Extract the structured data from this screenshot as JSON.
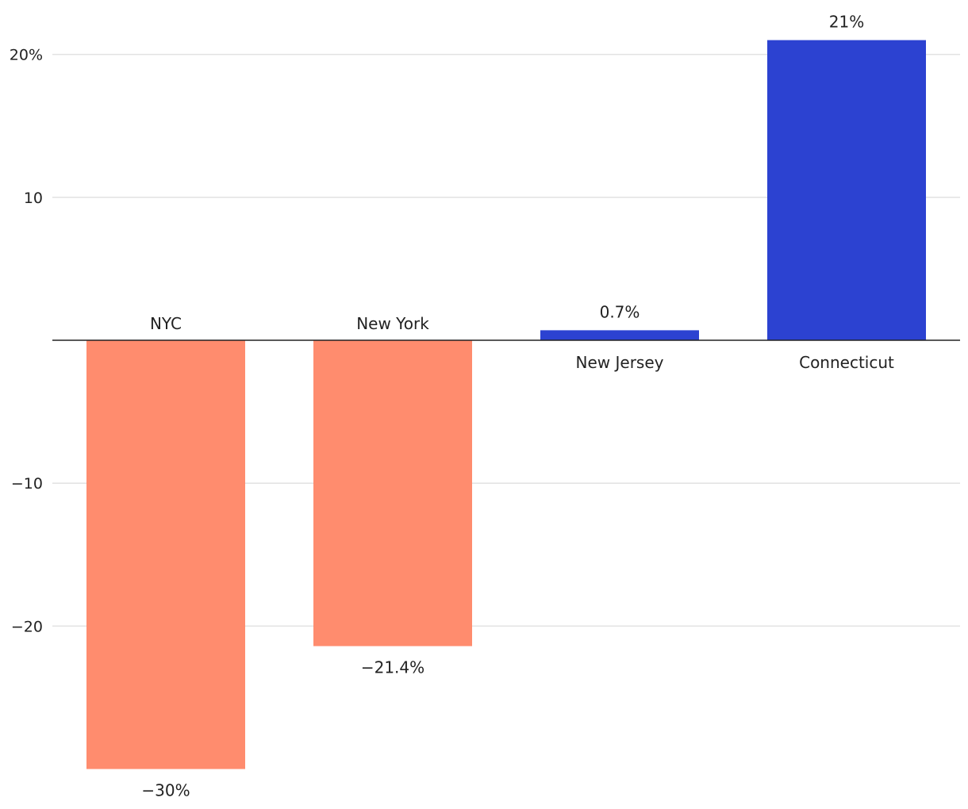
{
  "chart_data": {
    "type": "bar",
    "categories": [
      "NYC",
      "New York",
      "New Jersey",
      "Connecticut"
    ],
    "values": [
      -30,
      -21.4,
      0.7,
      21
    ],
    "value_labels": [
      "−30%",
      "−21.4%",
      "0.7%",
      "21%"
    ],
    "y_ticks": [
      {
        "value": 20,
        "label": "20%"
      },
      {
        "value": 10,
        "label": "10"
      },
      {
        "value": -10,
        "label": "−10"
      },
      {
        "value": -20,
        "label": "−20"
      }
    ],
    "ylim": [
      -30,
      21
    ],
    "grid": true,
    "title": "",
    "xlabel": "",
    "ylabel": "",
    "colors": {
      "negative": "#ff8c6e",
      "positive": "#2c42d1"
    }
  }
}
